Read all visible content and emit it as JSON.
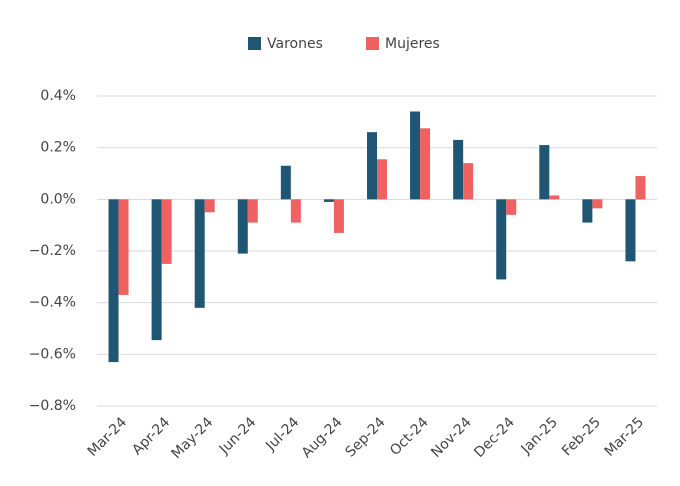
{
  "chart_data": {
    "type": "bar",
    "categories": [
      "Mar-24",
      "Apr-24",
      "May-24",
      "Jun-24",
      "Jul-24",
      "Aug-24",
      "Sep-24",
      "Oct-24",
      "Nov-24",
      "Dec-24",
      "Jan-25",
      "Feb-25",
      "Mar-25"
    ],
    "series": [
      {
        "name": "Varones",
        "color": "#1f5673",
        "values": [
          -0.63,
          -0.545,
          -0.42,
          -0.21,
          0.13,
          -0.01,
          0.26,
          0.34,
          0.23,
          -0.31,
          0.21,
          -0.09,
          -0.24
        ]
      },
      {
        "name": "Mujeres",
        "color": "#f06262",
        "values": [
          -0.37,
          -0.25,
          -0.05,
          -0.09,
          -0.09,
          -0.13,
          0.155,
          0.275,
          0.14,
          -0.06,
          0.015,
          -0.035,
          0.09
        ]
      }
    ],
    "ylim": [
      -0.8,
      0.4
    ],
    "yticks": [
      {
        "value": -0.8,
        "label": "−0.8%"
      },
      {
        "value": -0.6,
        "label": "−0.6%"
      },
      {
        "value": -0.4,
        "label": "−0.4%"
      },
      {
        "value": -0.2,
        "label": "−0.2%"
      },
      {
        "value": 0,
        "label": "0.0%"
      },
      {
        "value": 0.2,
        "label": "0.2%"
      },
      {
        "value": 0.4,
        "label": "0.4%"
      }
    ],
    "grid": true,
    "legend": "top"
  }
}
